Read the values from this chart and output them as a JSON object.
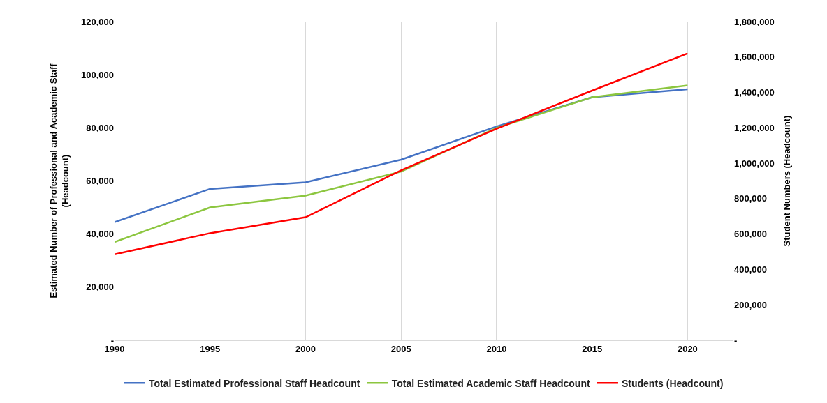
{
  "chart_data": {
    "type": "line",
    "ylabel": "Estimated Number of Professional and Academic Staff (Headcount)",
    "y2label": "Student Numbers (Headcount)",
    "x": [
      1990,
      1995,
      2000,
      2005,
      2010,
      2015,
      2020
    ],
    "xlim": [
      1990,
      2022.4
    ],
    "xticks": [
      1990,
      1995,
      2000,
      2005,
      2010,
      2015,
      2020
    ],
    "ylim": [
      0,
      120000
    ],
    "yticks": [
      {
        "value": 0,
        "label": "-"
      },
      {
        "value": 20000,
        "label": "20,000"
      },
      {
        "value": 40000,
        "label": "40,000"
      },
      {
        "value": 60000,
        "label": "60,000"
      },
      {
        "value": 80000,
        "label": "80,000"
      },
      {
        "value": 100000,
        "label": "100,000"
      },
      {
        "value": 120000,
        "label": "120,000"
      }
    ],
    "y2lim": [
      0,
      1800000
    ],
    "y2ticks": [
      {
        "value": 0,
        "label": "-"
      },
      {
        "value": 200000,
        "label": "200,000"
      },
      {
        "value": 400000,
        "label": "400,000"
      },
      {
        "value": 600000,
        "label": "600,000"
      },
      {
        "value": 800000,
        "label": "800,000"
      },
      {
        "value": 1000000,
        "label": "1,000,000"
      },
      {
        "value": 1200000,
        "label": "1,200,000"
      },
      {
        "value": 1400000,
        "label": "1,400,000"
      },
      {
        "value": 1600000,
        "label": "1,600,000"
      },
      {
        "value": 1800000,
        "label": "1,800,000"
      }
    ],
    "grid": true,
    "legend": "bottom",
    "marker": "none",
    "line_style": "solid",
    "series": [
      {
        "name": "Total Estimated Professional Staff Headcount",
        "color": "#4472c4",
        "values": [
          44500,
          57000,
          59500,
          68000,
          80500,
          91500,
          94500
        ]
      },
      {
        "name": "Total Estimated Academic Staff Headcount",
        "color": "#8cc63f",
        "values": [
          37000,
          50000,
          54500,
          63500,
          80000,
          91500,
          96000
        ]
      },
      {
        "name": "Students (Headcount)",
        "color": "#ff0000",
        "axis": "y2",
        "values": [
          485000,
          605000,
          695000,
          960000,
          1195000,
          1410000,
          1620000
        ]
      }
    ]
  }
}
